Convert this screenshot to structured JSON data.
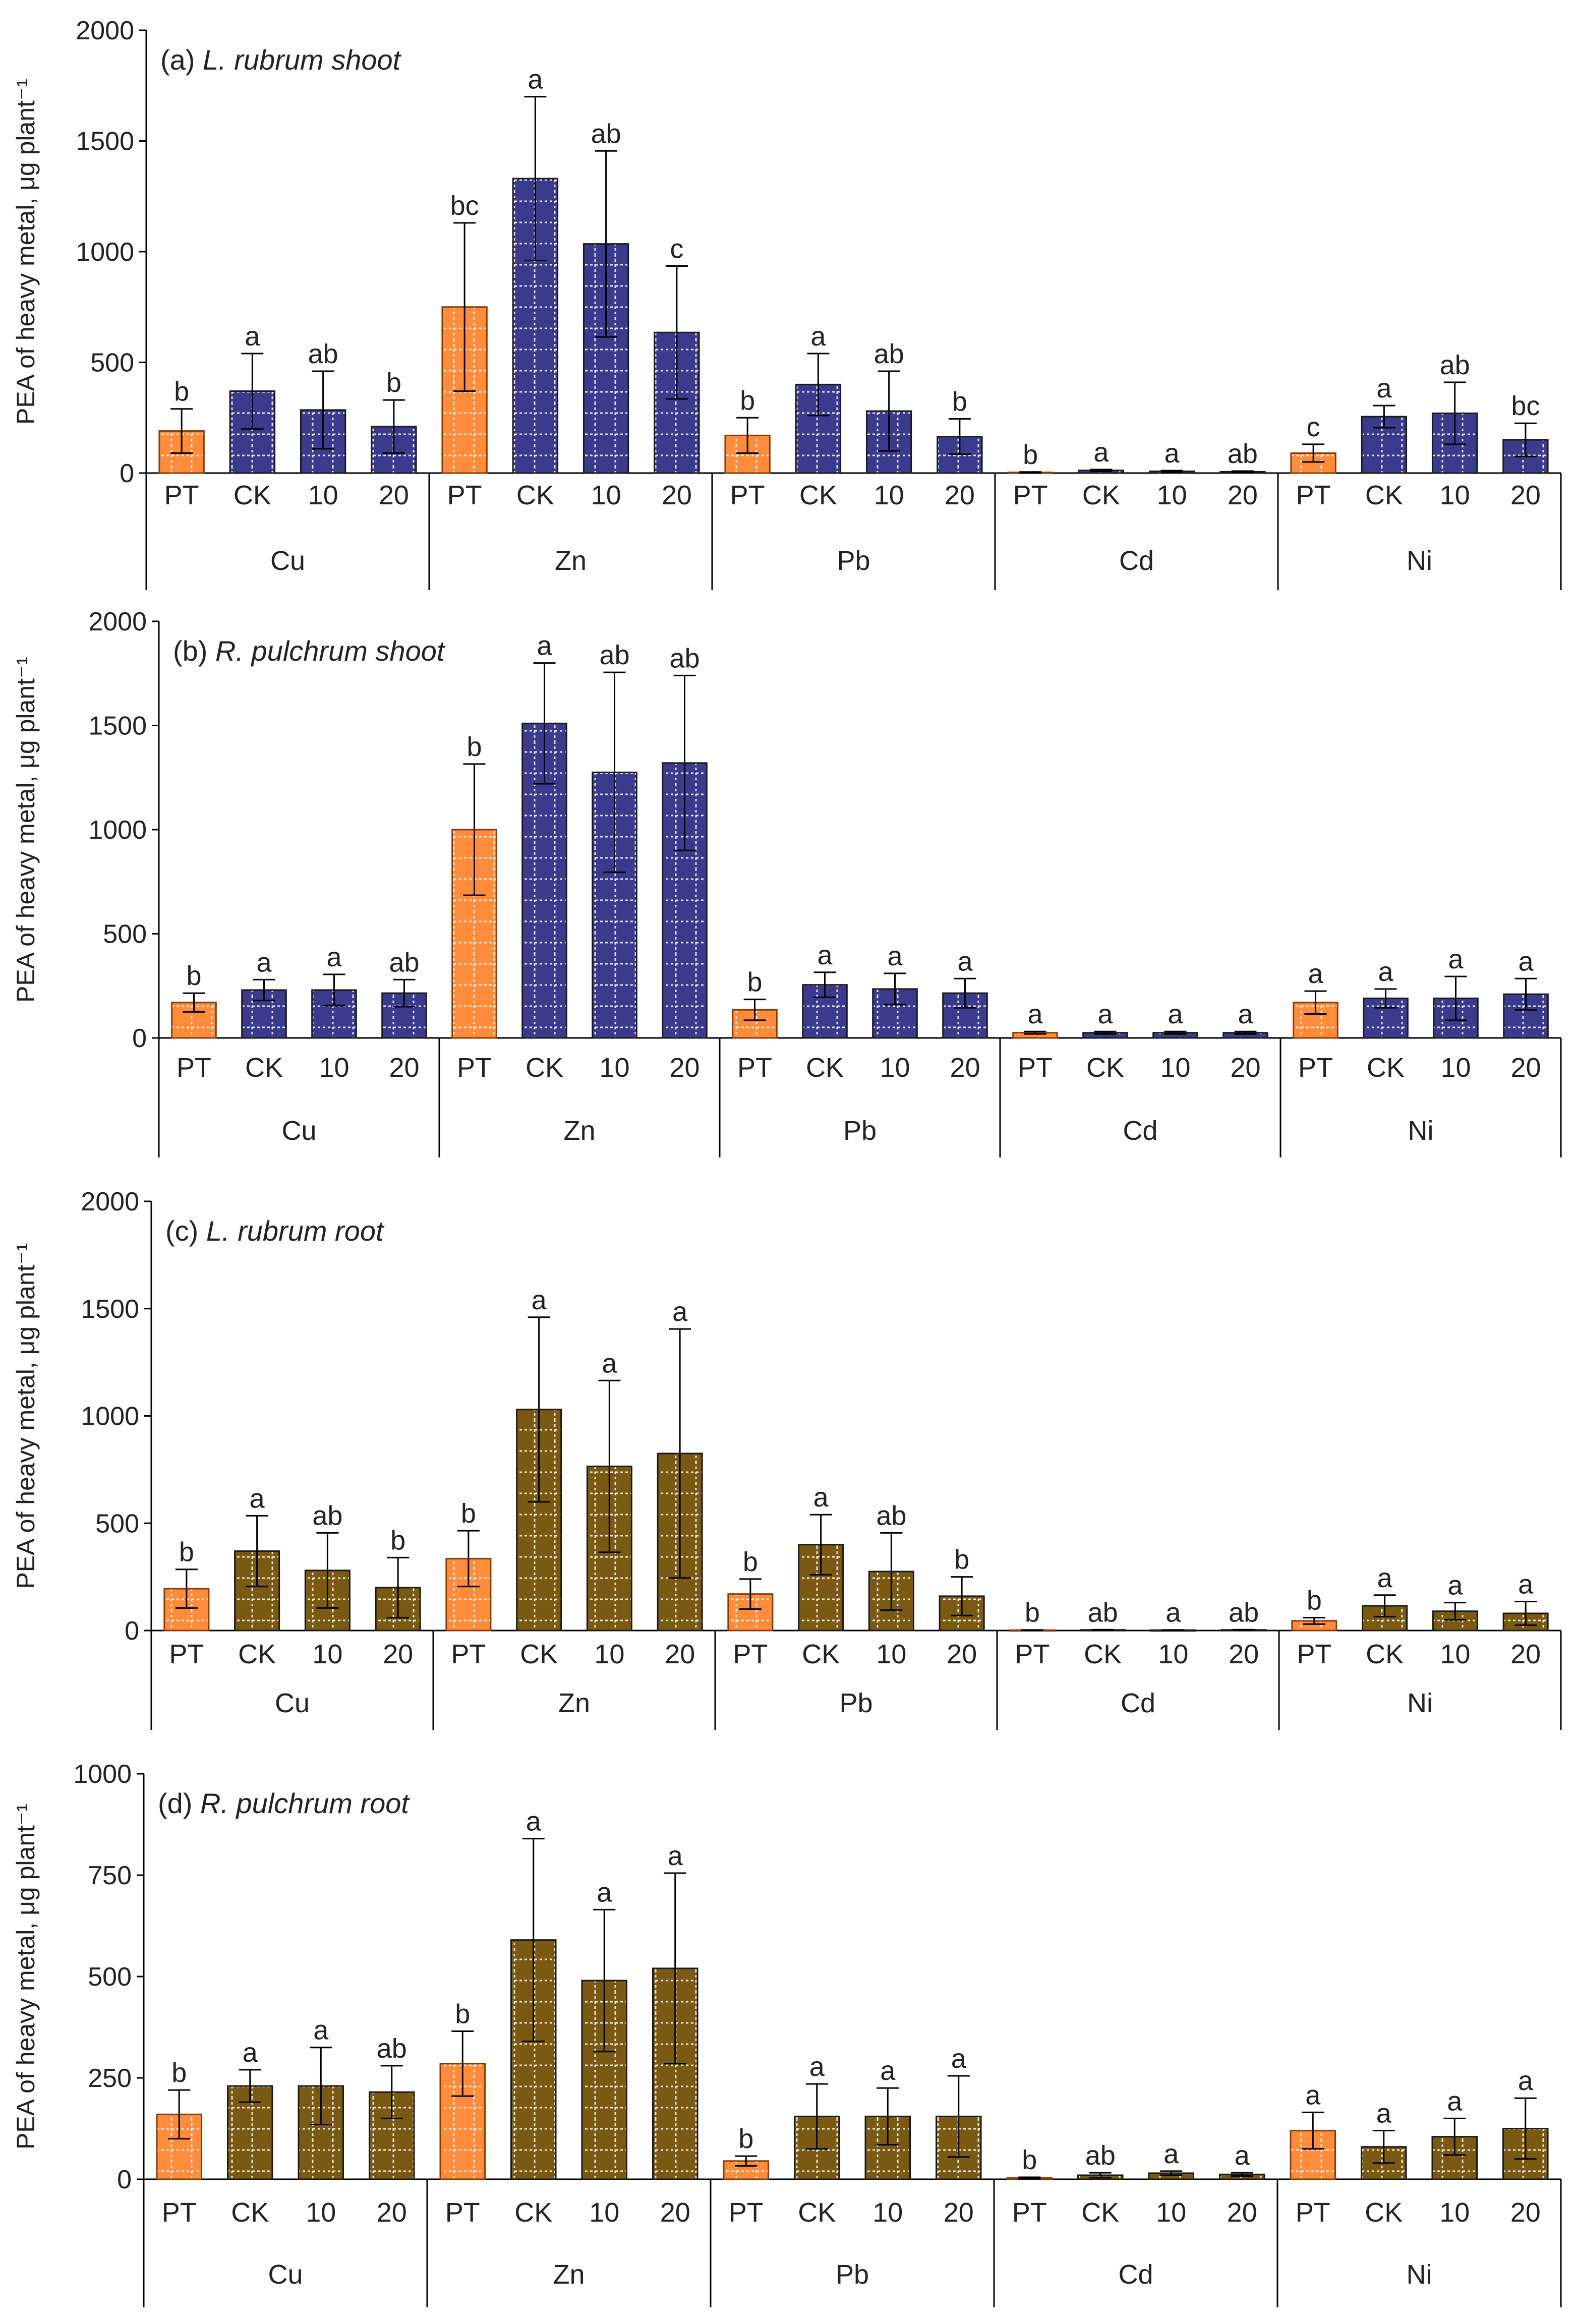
{
  "figure": {
    "ylabel": "PEA of heavy metal, μg plant⁻¹",
    "groups": [
      "Cu",
      "Zn",
      "Pb",
      "Cd",
      "Ni"
    ],
    "treatments": [
      "PT",
      "CK",
      "10",
      "20"
    ]
  },
  "colors": {
    "pt": "#FF8C3A",
    "pt_edge": "#8A3A08",
    "shoot": "#3B3B8E",
    "root": "#7A5A12",
    "bar_edge": "#1A1A1A",
    "grid_dot": "#FFFFFF",
    "axis": "#000000",
    "text": "#222222"
  },
  "chart_data": [
    {
      "type": "bar",
      "panel_label": "(a)",
      "title": "L. rubrum shoot",
      "ylabel": "PEA of heavy metal, μg plant⁻¹",
      "ylim": [
        0,
        2000
      ],
      "yticks": [
        0,
        500,
        1000,
        1500,
        2000
      ],
      "color_key": "shoot",
      "categories": [
        "Cu",
        "Zn",
        "Pb",
        "Cd",
        "Ni"
      ],
      "treatments": [
        "PT",
        "CK",
        "10",
        "20"
      ],
      "values": [
        [
          190,
          370,
          285,
          210
        ],
        [
          750,
          1330,
          1035,
          635
        ],
        [
          170,
          400,
          280,
          165
        ],
        [
          3,
          12,
          8,
          6
        ],
        [
          90,
          255,
          270,
          150
        ]
      ],
      "errors": [
        [
          100,
          170,
          175,
          120
        ],
        [
          380,
          370,
          420,
          300
        ],
        [
          80,
          140,
          180,
          80
        ],
        [
          2,
          4,
          3,
          3
        ],
        [
          40,
          50,
          140,
          75
        ]
      ],
      "letters": [
        [
          "b",
          "a",
          "ab",
          "b"
        ],
        [
          "bc",
          "a",
          "ab",
          "c"
        ],
        [
          "b",
          "a",
          "ab",
          "b"
        ],
        [
          "b",
          "a",
          "a",
          "ab"
        ],
        [
          "c",
          "a",
          "ab",
          "bc"
        ]
      ]
    },
    {
      "type": "bar",
      "panel_label": "(b)",
      "title": "R. pulchrum shoot",
      "ylabel": "PEA of heavy metal, μg plant⁻¹",
      "ylim": [
        0,
        2000
      ],
      "yticks": [
        0,
        500,
        1000,
        1500,
        2000
      ],
      "color_key": "shoot",
      "categories": [
        "Cu",
        "Zn",
        "Pb",
        "Cd",
        "Ni"
      ],
      "treatments": [
        "PT",
        "CK",
        "10",
        "20"
      ],
      "values": [
        [
          170,
          230,
          230,
          215
        ],
        [
          1000,
          1510,
          1275,
          1320
        ],
        [
          135,
          255,
          235,
          215
        ],
        [
          25,
          25,
          25,
          25
        ],
        [
          170,
          190,
          190,
          210
        ]
      ],
      "errors": [
        [
          45,
          50,
          75,
          65
        ],
        [
          315,
          290,
          480,
          420
        ],
        [
          50,
          60,
          75,
          70
        ],
        [
          6,
          6,
          6,
          6
        ],
        [
          55,
          45,
          105,
          75
        ]
      ],
      "letters": [
        [
          "b",
          "a",
          "a",
          "ab"
        ],
        [
          "b",
          "a",
          "ab",
          "ab"
        ],
        [
          "b",
          "a",
          "a",
          "a"
        ],
        [
          "a",
          "a",
          "a",
          "a"
        ],
        [
          "a",
          "a",
          "a",
          "a"
        ]
      ]
    },
    {
      "type": "bar",
      "panel_label": "(c)",
      "title": "L. rubrum root",
      "ylabel": "PEA of heavy metal, μg plant⁻¹",
      "ylim": [
        0,
        2000
      ],
      "yticks": [
        0,
        500,
        1000,
        1500,
        2000
      ],
      "color_key": "root",
      "categories": [
        "Cu",
        "Zn",
        "Pb",
        "Cd",
        "Ni"
      ],
      "treatments": [
        "PT",
        "CK",
        "10",
        "20"
      ],
      "values": [
        [
          195,
          370,
          280,
          200
        ],
        [
          335,
          1030,
          765,
          825
        ],
        [
          170,
          400,
          275,
          160
        ],
        [
          2,
          3,
          2,
          3
        ],
        [
          45,
          115,
          90,
          80
        ]
      ],
      "errors": [
        [
          90,
          165,
          175,
          140
        ],
        [
          130,
          430,
          400,
          580
        ],
        [
          70,
          140,
          180,
          90
        ],
        [
          1,
          1,
          1,
          1
        ],
        [
          15,
          50,
          40,
          55
        ]
      ],
      "letters": [
        [
          "b",
          "a",
          "ab",
          "b"
        ],
        [
          "b",
          "a",
          "a",
          "a"
        ],
        [
          "b",
          "a",
          "ab",
          "b"
        ],
        [
          "b",
          "ab",
          "a",
          "ab"
        ],
        [
          "b",
          "a",
          "a",
          "a"
        ]
      ]
    },
    {
      "type": "bar",
      "panel_label": "(d)",
      "title": "R. pulchrum root",
      "ylabel": "PEA of heavy metal, μg plant⁻¹",
      "ylim": [
        0,
        1000
      ],
      "yticks": [
        0,
        250,
        500,
        750,
        1000
      ],
      "color_key": "root",
      "categories": [
        "Cu",
        "Zn",
        "Pb",
        "Cd",
        "Ni"
      ],
      "treatments": [
        "PT",
        "CK",
        "10",
        "20"
      ],
      "values": [
        [
          160,
          230,
          230,
          215
        ],
        [
          285,
          590,
          490,
          520
        ],
        [
          45,
          155,
          155,
          155
        ],
        [
          3,
          10,
          15,
          12
        ],
        [
          120,
          80,
          105,
          125
        ]
      ],
      "errors": [
        [
          60,
          40,
          95,
          65
        ],
        [
          80,
          250,
          175,
          235
        ],
        [
          12,
          80,
          70,
          100
        ],
        [
          2,
          6,
          5,
          4
        ],
        [
          45,
          40,
          45,
          75
        ]
      ],
      "letters": [
        [
          "b",
          "a",
          "a",
          "ab"
        ],
        [
          "b",
          "a",
          "a",
          "a"
        ],
        [
          "b",
          "a",
          "a",
          "a"
        ],
        [
          "b",
          "ab",
          "a",
          "a"
        ],
        [
          "a",
          "a",
          "a",
          "a"
        ]
      ]
    }
  ]
}
